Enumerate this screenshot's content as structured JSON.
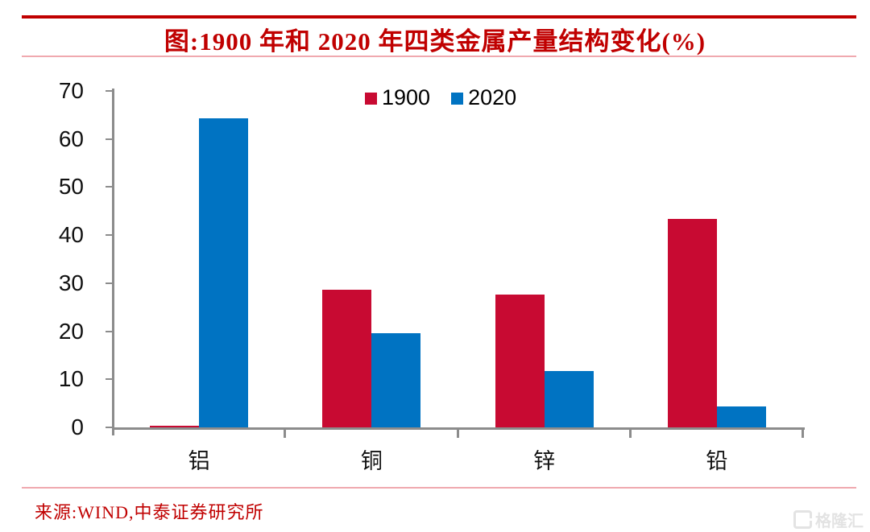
{
  "chart_data": {
    "type": "bar",
    "title": "图:1900 年和 2020 年四类金属产量结构变化(%)",
    "categories": [
      "铝",
      "铜",
      "锌",
      "铅"
    ],
    "series": [
      {
        "name": "1900",
        "color": "#C80A32",
        "values": [
          0.4,
          28.6,
          27.7,
          43.4
        ]
      },
      {
        "name": "2020",
        "color": "#0073C2",
        "values": [
          64.3,
          19.6,
          11.8,
          4.3
        ]
      }
    ],
    "xlabel": "",
    "ylabel": "",
    "ylim": [
      0,
      70
    ],
    "yticks": [
      0,
      10,
      20,
      30,
      40,
      50,
      60,
      70
    ],
    "grid": false,
    "legend_position": "top-center"
  },
  "footer": {
    "source": "来源:WIND,中泰证券研究所"
  },
  "watermark": {
    "brand": "格隆汇"
  },
  "colors": {
    "series_1900": "#C80A32",
    "series_2020": "#0073C2",
    "title_red": "#C00000",
    "divider_pink": "#F0A9AF",
    "axis_gray": "#8C8C8C",
    "tick_label": "#111111",
    "watermark_gray": "#E3E3E3"
  }
}
